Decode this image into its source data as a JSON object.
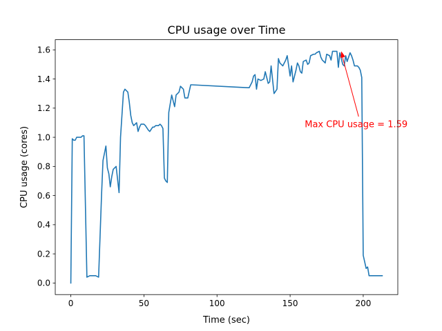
{
  "chart_data": {
    "type": "line",
    "title": "CPU usage over Time",
    "xlabel": "Time (sec)",
    "ylabel": "CPU usage (cores)",
    "xlim": [
      -10.65,
      223.65
    ],
    "ylim": [
      -0.0795,
      1.6695
    ],
    "xticks": [
      0,
      50,
      100,
      150,
      200
    ],
    "yticks": [
      0.0,
      0.2,
      0.4,
      0.6,
      0.8,
      1.0,
      1.2,
      1.4,
      1.6
    ],
    "xtick_labels": [
      "0",
      "50",
      "100",
      "150",
      "200"
    ],
    "ytick_labels": [
      "0.0",
      "0.2",
      "0.4",
      "0.6",
      "0.8",
      "1.0",
      "1.2",
      "1.4",
      "1.6"
    ],
    "grid": false,
    "line_color": "#1f77b4",
    "annotation": {
      "text": "Max CPU usage = 1.59",
      "color": "#ff0000",
      "point": [
        185,
        1.59
      ],
      "text_at": [
        160,
        1.09
      ]
    },
    "series": [
      {
        "x": [
          0,
          1,
          2,
          3,
          4,
          5,
          6,
          7,
          8,
          9,
          11,
          13,
          15,
          17,
          19,
          21,
          22,
          24,
          25,
          26,
          27,
          28,
          29,
          31,
          33,
          34,
          36,
          37,
          38,
          39,
          40,
          41,
          42,
          43,
          45,
          46,
          47,
          48,
          50,
          51,
          53,
          54,
          56,
          57,
          58,
          60,
          61,
          62,
          63,
          64,
          65,
          66,
          67,
          69,
          71,
          72,
          74,
          75,
          77,
          78,
          80,
          82,
          83,
          121,
          122,
          124,
          125,
          126,
          127,
          128,
          130,
          132,
          133,
          135,
          136,
          137,
          139,
          141,
          142,
          143,
          145,
          147,
          148,
          150,
          151,
          152,
          154,
          155,
          156,
          157,
          158,
          159,
          161,
          162,
          163,
          164,
          166,
          167,
          168,
          170,
          171,
          172,
          173,
          174,
          175,
          177,
          178,
          179,
          180,
          182,
          183,
          184,
          186,
          187,
          188,
          189,
          191,
          192,
          193,
          194,
          196,
          197,
          198,
          199,
          200,
          202,
          203,
          204,
          205,
          206,
          207,
          209,
          210,
          213
        ],
        "y": [
          0.0,
          0.99,
          0.98,
          0.98,
          1.0,
          1.0,
          1.0,
          1.0,
          1.01,
          1.01,
          0.04,
          0.05,
          0.05,
          0.05,
          0.04,
          0.6,
          0.84,
          0.94,
          0.79,
          0.75,
          0.66,
          0.73,
          0.78,
          0.8,
          0.62,
          1.0,
          1.31,
          1.33,
          1.32,
          1.31,
          1.24,
          1.15,
          1.1,
          1.08,
          1.1,
          1.04,
          1.07,
          1.09,
          1.09,
          1.08,
          1.05,
          1.04,
          1.07,
          1.07,
          1.08,
          1.08,
          1.09,
          1.08,
          1.06,
          0.72,
          0.7,
          0.69,
          1.17,
          1.29,
          1.21,
          1.29,
          1.31,
          1.35,
          1.33,
          1.27,
          1.27,
          1.36,
          1.36,
          1.34,
          1.34,
          1.38,
          1.42,
          1.43,
          1.33,
          1.4,
          1.39,
          1.4,
          1.45,
          1.37,
          1.38,
          1.49,
          1.3,
          1.33,
          1.54,
          1.51,
          1.49,
          1.53,
          1.56,
          1.42,
          1.49,
          1.38,
          1.46,
          1.51,
          1.49,
          1.45,
          1.44,
          1.52,
          1.53,
          1.5,
          1.51,
          1.56,
          1.57,
          1.57,
          1.58,
          1.59,
          1.55,
          1.53,
          1.52,
          1.51,
          1.57,
          1.56,
          1.53,
          1.59,
          1.59,
          1.59,
          1.48,
          1.58,
          1.5,
          1.49,
          1.56,
          1.52,
          1.58,
          1.56,
          1.53,
          1.49,
          1.49,
          1.48,
          1.46,
          1.41,
          0.19,
          0.1,
          0.11,
          0.05,
          0.05,
          0.05,
          0.05,
          0.05,
          0.05,
          0.05
        ]
      }
    ]
  }
}
